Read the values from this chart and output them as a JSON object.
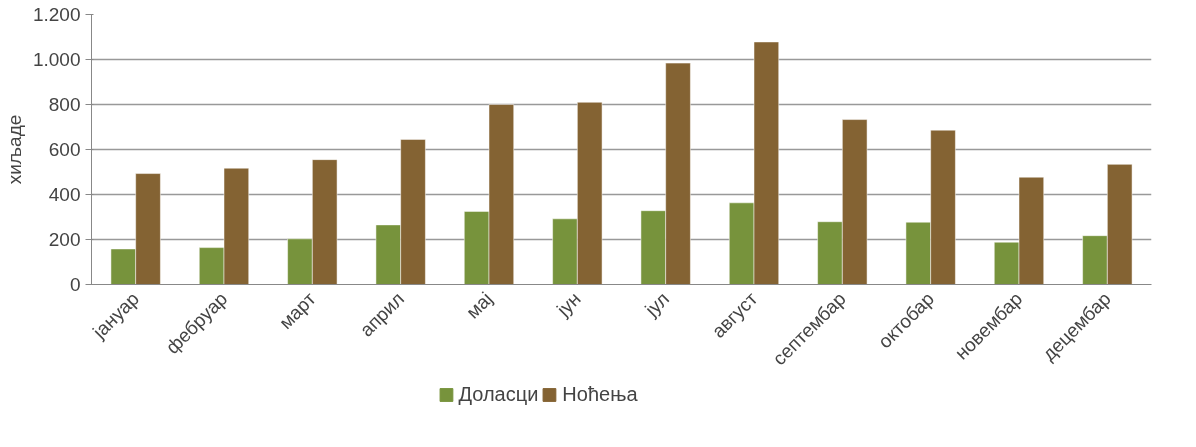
{
  "chart_data": {
    "type": "bar",
    "ylabel": "хиљаде",
    "categories": [
      "јануар",
      "фебруар",
      "март",
      "април",
      "мај",
      "јун",
      "јул",
      "август",
      "септембар",
      "октобар",
      "новембар",
      "децембар"
    ],
    "series": [
      {
        "name": "Доласци",
        "color": "#77933c",
        "values": [
          158,
          164,
          203,
          265,
          325,
          292,
          328,
          363,
          279,
          277,
          188,
          217
        ]
      },
      {
        "name": "Ноћења",
        "color": "#846333",
        "values": [
          493,
          517,
          555,
          645,
          800,
          810,
          984,
          1078,
          733,
          686,
          477,
          534
        ]
      }
    ],
    "ylim": [
      0,
      1200
    ],
    "yticks": [
      0,
      {
        "value": 200,
        "label": "200"
      },
      {
        "value": 400,
        "label": "400"
      },
      {
        "value": 600,
        "label": "600"
      },
      {
        "value": 800,
        "label": "800"
      },
      {
        "value": 1000,
        "label": "1.000"
      },
      {
        "value": 1200,
        "label": "1.200"
      }
    ],
    "grid": "y",
    "legend": "bottom"
  }
}
